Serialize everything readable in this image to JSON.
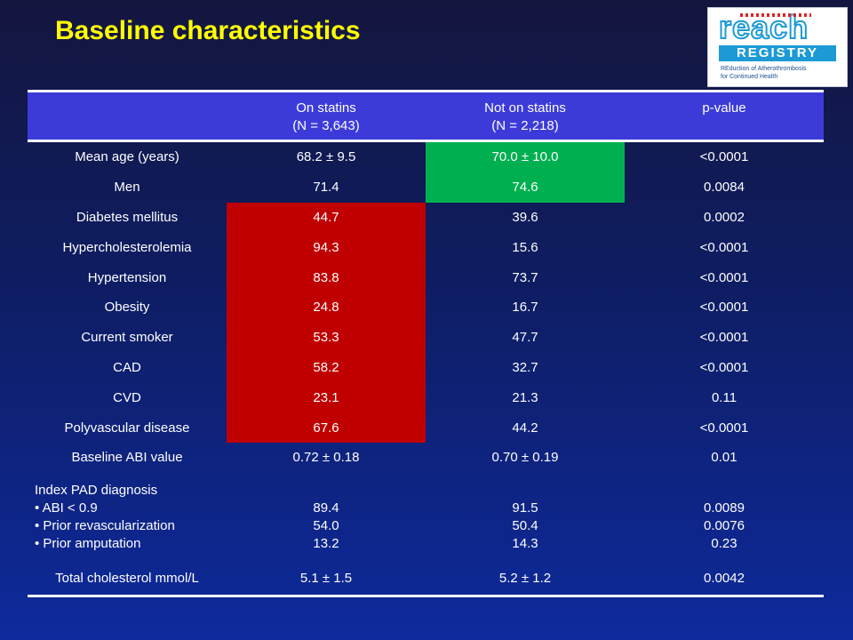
{
  "title": "Baseline characteristics",
  "logo": {
    "word": "reach",
    "registry": "REGISTRY",
    "subtitle_1": "REduction of Atherothrombosis",
    "subtitle_2": "for Continued Health"
  },
  "table": {
    "headers": [
      {
        "line1": "",
        "line2": ""
      },
      {
        "line1": "On statins",
        "line2": "(N = 3,643)"
      },
      {
        "line1": "Not on statins",
        "line2": "(N = 2,218)"
      },
      {
        "line1": "p-value",
        "line2": ""
      }
    ],
    "rows": [
      {
        "label": "Mean age (years)",
        "on": "68.2 ± 9.5",
        "not": "70.0 ± 10.0",
        "p": "<0.0001",
        "highlight_not": "#00b050"
      },
      {
        "label": "Men",
        "on": "71.4",
        "not": "74.6",
        "p": "0.0084",
        "highlight_not": "#00b050"
      },
      {
        "label": "Diabetes mellitus",
        "on": "44.7",
        "not": "39.6",
        "p": "0.0002",
        "highlight_on": "#c00000"
      },
      {
        "label": "Hypercholesterolemia",
        "on": "94.3",
        "not": "15.6",
        "p": "<0.0001",
        "highlight_on": "#c00000"
      },
      {
        "label": "Hypertension",
        "on": "83.8",
        "not": "73.7",
        "p": "<0.0001",
        "highlight_on": "#c00000"
      },
      {
        "label": "Obesity",
        "on": "24.8",
        "not": "16.7",
        "p": "<0.0001",
        "highlight_on": "#c00000"
      },
      {
        "label": "Current smoker",
        "on": "53.3",
        "not": "47.7",
        "p": "<0.0001",
        "highlight_on": "#c00000"
      },
      {
        "label": "CAD",
        "on": "58.2",
        "not": "32.7",
        "p": "<0.0001",
        "highlight_on": "#c00000"
      },
      {
        "label": "CVD",
        "on": "23.1",
        "not": "21.3",
        "p": "0.11",
        "highlight_on": "#c00000"
      },
      {
        "label": "Polyvascular disease",
        "on": "67.6",
        "not": "44.2",
        "p": "<0.0001",
        "highlight_on": "#c00000"
      },
      {
        "label": "Baseline ABI value",
        "on": "0.72 ± 0.18",
        "not": "0.70 ± 0.19",
        "p": "0.01"
      }
    ],
    "pad": {
      "label": "Index PAD diagnosis",
      "items": [
        {
          "label": "• ABI < 0.9",
          "on": "89.4",
          "not": "91.5",
          "p": "0.0089"
        },
        {
          "label": "• Prior revascularization",
          "on": "54.0",
          "not": "50.4",
          "p": "0.0076"
        },
        {
          "label": "• Prior amputation",
          "on": "13.2",
          "not": "14.3",
          "p": "0.23"
        }
      ]
    },
    "last": {
      "label": "Total cholesterol mmol/L",
      "on": "5.1 ± 1.5",
      "not": "5.2 ± 1.2",
      "p": "0.0042"
    }
  }
}
